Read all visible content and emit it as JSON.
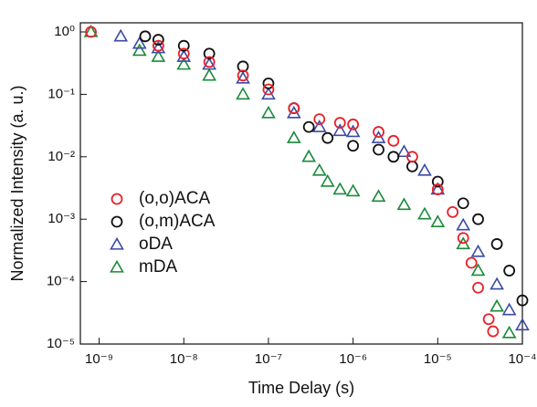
{
  "chart_data": {
    "type": "scatter",
    "xlabel": "Time Delay (s)",
    "ylabel": "Normalized Intensity (a. u.)",
    "xscale": "log",
    "yscale": "log",
    "xlim": [
      6e-10,
      0.0001
    ],
    "ylim": [
      1e-05,
      1.4
    ],
    "xticks": [
      {
        "value": 1e-09,
        "label": "10⁻⁹"
      },
      {
        "value": 1e-08,
        "label": "10⁻⁸"
      },
      {
        "value": 1e-07,
        "label": "10⁻⁷"
      },
      {
        "value": 1e-06,
        "label": "10⁻⁶"
      },
      {
        "value": 1e-05,
        "label": "10⁻⁵"
      },
      {
        "value": 0.0001,
        "label": "10⁻⁴"
      }
    ],
    "yticks": [
      {
        "value": 1e-05,
        "label": "10⁻⁵"
      },
      {
        "value": 0.0001,
        "label": "10⁻⁴"
      },
      {
        "value": 0.001,
        "label": "10⁻³"
      },
      {
        "value": 0.01,
        "label": "10⁻²"
      },
      {
        "value": 0.1,
        "label": "10⁻¹"
      },
      {
        "value": 1,
        "label": "10⁰"
      }
    ],
    "legend": "center left",
    "series": [
      {
        "name": "(o,o)ACA",
        "color": "#e8222a",
        "marker": "circle",
        "x": [
          8e-10,
          5e-09,
          1e-08,
          2e-08,
          5e-08,
          1e-07,
          2e-07,
          4e-07,
          7e-07,
          1e-06,
          2e-06,
          3e-06,
          5e-06,
          1e-05,
          1.5e-05,
          2e-05,
          2.5e-05,
          3e-05,
          4e-05,
          4.5e-05
        ],
        "values": [
          1.0,
          0.6,
          0.45,
          0.33,
          0.2,
          0.12,
          0.06,
          0.04,
          0.035,
          0.033,
          0.025,
          0.018,
          0.01,
          0.003,
          0.0013,
          0.0005,
          0.0002,
          8e-05,
          2.5e-05,
          1.6e-05
        ]
      },
      {
        "name": "(o,m)ACA",
        "color": "#111111",
        "marker": "circle",
        "x": [
          3.5e-09,
          5e-09,
          1e-08,
          2e-08,
          5e-08,
          1e-07,
          2e-07,
          3e-07,
          5e-07,
          1e-06,
          2e-06,
          3e-06,
          5e-06,
          1e-05,
          2e-05,
          3e-05,
          5e-05,
          7e-05,
          0.0001
        ],
        "values": [
          0.85,
          0.75,
          0.6,
          0.45,
          0.28,
          0.15,
          0.06,
          0.03,
          0.02,
          0.015,
          0.013,
          0.01,
          0.007,
          0.004,
          0.0018,
          0.001,
          0.0004,
          0.00015,
          5e-05
        ]
      },
      {
        "name": "oDA",
        "color": "#3b4aa5",
        "marker": "triangle",
        "x": [
          1.8e-09,
          3e-09,
          5e-09,
          1e-08,
          2e-08,
          5e-08,
          1e-07,
          2e-07,
          4e-07,
          7e-07,
          1e-06,
          2e-06,
          4e-06,
          7e-06,
          1e-05,
          2e-05,
          3e-05,
          5e-05,
          7e-05,
          0.0001
        ],
        "values": [
          0.85,
          0.65,
          0.55,
          0.4,
          0.3,
          0.18,
          0.1,
          0.05,
          0.03,
          0.026,
          0.025,
          0.02,
          0.012,
          0.006,
          0.003,
          0.0008,
          0.0003,
          9e-05,
          3.5e-05,
          2e-05
        ]
      },
      {
        "name": "mDA",
        "color": "#1a8a3a",
        "marker": "triangle",
        "x": [
          8e-10,
          3e-09,
          5e-09,
          1e-08,
          2e-08,
          5e-08,
          1e-07,
          2e-07,
          3e-07,
          4e-07,
          5e-07,
          7e-07,
          1e-06,
          2e-06,
          4e-06,
          7e-06,
          1e-05,
          2e-05,
          3e-05,
          5e-05,
          7e-05
        ],
        "values": [
          1.0,
          0.5,
          0.4,
          0.3,
          0.2,
          0.1,
          0.05,
          0.02,
          0.01,
          0.006,
          0.004,
          0.003,
          0.0028,
          0.0023,
          0.0017,
          0.0012,
          0.0009,
          0.0004,
          0.00015,
          4e-05,
          1.5e-05
        ]
      }
    ]
  }
}
